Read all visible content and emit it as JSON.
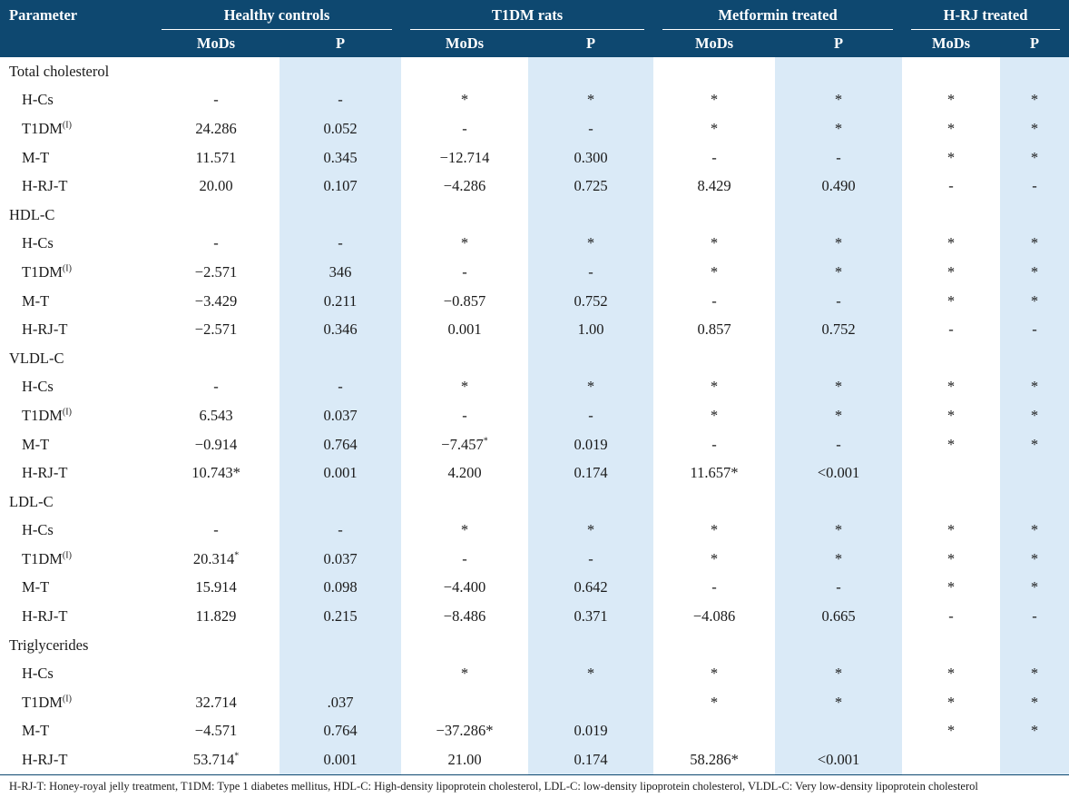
{
  "header": {
    "parameter": "Parameter",
    "groups": [
      "Healthy controls",
      "T1DM rats",
      "Metformin treated",
      "H-RJ treated"
    ],
    "sub_mods": "MoDs",
    "sub_p": "P"
  },
  "rows": [
    {
      "type": "group",
      "name": "Total cholesterol"
    },
    {
      "type": "sub",
      "name": "H-Cs",
      "sup": "",
      "cells": [
        {
          "v": "-"
        },
        {
          "v": "-"
        },
        {
          "v": "*"
        },
        {
          "v": "*"
        },
        {
          "v": "*"
        },
        {
          "v": "*"
        },
        {
          "v": "*"
        },
        {
          "v": "*"
        }
      ]
    },
    {
      "type": "sub",
      "name": "T1DM",
      "sup": "(I)",
      "cells": [
        {
          "v": "24.286"
        },
        {
          "v": "0.052"
        },
        {
          "v": "-"
        },
        {
          "v": "-"
        },
        {
          "v": "*"
        },
        {
          "v": "*"
        },
        {
          "v": "*"
        },
        {
          "v": "*"
        }
      ]
    },
    {
      "type": "sub",
      "name": "M-T",
      "sup": "",
      "cells": [
        {
          "v": "11.571"
        },
        {
          "v": "0.345"
        },
        {
          "v": "−12.714"
        },
        {
          "v": "0.300"
        },
        {
          "v": "-"
        },
        {
          "v": "-"
        },
        {
          "v": "*"
        },
        {
          "v": "*"
        }
      ]
    },
    {
      "type": "sub",
      "name": "H-RJ-T",
      "sup": "",
      "cells": [
        {
          "v": "20.00"
        },
        {
          "v": "0.107"
        },
        {
          "v": "−4.286"
        },
        {
          "v": "0.725"
        },
        {
          "v": "8.429"
        },
        {
          "v": "0.490"
        },
        {
          "v": "-"
        },
        {
          "v": "-"
        }
      ]
    },
    {
      "type": "group",
      "name": "HDL-C"
    },
    {
      "type": "sub",
      "name": "H-Cs",
      "sup": "",
      "cells": [
        {
          "v": "-"
        },
        {
          "v": "-"
        },
        {
          "v": "*"
        },
        {
          "v": "*"
        },
        {
          "v": "*"
        },
        {
          "v": "*"
        },
        {
          "v": "*"
        },
        {
          "v": "*"
        }
      ]
    },
    {
      "type": "sub",
      "name": "T1DM",
      "sup": "(I)",
      "cells": [
        {
          "v": "−2.571"
        },
        {
          "v": "346"
        },
        {
          "v": "-"
        },
        {
          "v": "-"
        },
        {
          "v": "*"
        },
        {
          "v": "*"
        },
        {
          "v": "*"
        },
        {
          "v": "*"
        }
      ]
    },
    {
      "type": "sub",
      "name": "M-T",
      "sup": "",
      "cells": [
        {
          "v": "−3.429"
        },
        {
          "v": "0.211"
        },
        {
          "v": "−0.857"
        },
        {
          "v": "0.752"
        },
        {
          "v": "-"
        },
        {
          "v": "-"
        },
        {
          "v": "*"
        },
        {
          "v": "*"
        }
      ]
    },
    {
      "type": "sub",
      "name": "H-RJ-T",
      "sup": "",
      "cells": [
        {
          "v": "−2.571"
        },
        {
          "v": "0.346"
        },
        {
          "v": "0.001"
        },
        {
          "v": "1.00"
        },
        {
          "v": "0.857"
        },
        {
          "v": "0.752"
        },
        {
          "v": "-"
        },
        {
          "v": "-"
        }
      ]
    },
    {
      "type": "group",
      "name": "VLDL-C"
    },
    {
      "type": "sub",
      "name": "H-Cs",
      "sup": "",
      "cells": [
        {
          "v": "-"
        },
        {
          "v": "-"
        },
        {
          "v": "*"
        },
        {
          "v": "*"
        },
        {
          "v": "*"
        },
        {
          "v": "*"
        },
        {
          "v": "*"
        },
        {
          "v": "*"
        }
      ]
    },
    {
      "type": "sub",
      "name": "T1DM",
      "sup": "(I)",
      "cells": [
        {
          "v": "6.543"
        },
        {
          "v": "0.037"
        },
        {
          "v": "-"
        },
        {
          "v": "-"
        },
        {
          "v": "*"
        },
        {
          "v": "*"
        },
        {
          "v": "*"
        },
        {
          "v": "*"
        }
      ]
    },
    {
      "type": "sub",
      "name": "M-T",
      "sup": "",
      "cells": [
        {
          "v": "−0.914"
        },
        {
          "v": "0.764"
        },
        {
          "v": "−7.457",
          "sup": "*"
        },
        {
          "v": "0.019"
        },
        {
          "v": "-"
        },
        {
          "v": "-"
        },
        {
          "v": "*"
        },
        {
          "v": "*"
        }
      ]
    },
    {
      "type": "sub",
      "name": "H-RJ-T",
      "sup": "",
      "cells": [
        {
          "v": "10.743*"
        },
        {
          "v": "0.001"
        },
        {
          "v": "4.200"
        },
        {
          "v": "0.174"
        },
        {
          "v": "11.657*"
        },
        {
          "v": "<0.001"
        },
        {
          "v": ""
        },
        {
          "v": ""
        }
      ]
    },
    {
      "type": "group",
      "name": "LDL-C"
    },
    {
      "type": "sub",
      "name": "H-Cs",
      "sup": "",
      "cells": [
        {
          "v": "-"
        },
        {
          "v": "-"
        },
        {
          "v": "*"
        },
        {
          "v": "*"
        },
        {
          "v": "*"
        },
        {
          "v": "*"
        },
        {
          "v": "*"
        },
        {
          "v": "*"
        }
      ]
    },
    {
      "type": "sub",
      "name": "T1DM",
      "sup": "(I)",
      "cells": [
        {
          "v": "20.314",
          "sup": "*"
        },
        {
          "v": "0.037"
        },
        {
          "v": "-"
        },
        {
          "v": "-"
        },
        {
          "v": "*"
        },
        {
          "v": "*"
        },
        {
          "v": "*"
        },
        {
          "v": "*"
        }
      ]
    },
    {
      "type": "sub",
      "name": "M-T",
      "sup": "",
      "cells": [
        {
          "v": "15.914"
        },
        {
          "v": "0.098"
        },
        {
          "v": "−4.400"
        },
        {
          "v": "0.642"
        },
        {
          "v": "-"
        },
        {
          "v": "-"
        },
        {
          "v": "*"
        },
        {
          "v": "*"
        }
      ]
    },
    {
      "type": "sub",
      "name": "H-RJ-T",
      "sup": "",
      "cells": [
        {
          "v": "11.829"
        },
        {
          "v": "0.215"
        },
        {
          "v": "−8.486"
        },
        {
          "v": "0.371"
        },
        {
          "v": "−4.086"
        },
        {
          "v": "0.665"
        },
        {
          "v": "-"
        },
        {
          "v": "-"
        }
      ]
    },
    {
      "type": "group",
      "name": "Triglycerides"
    },
    {
      "type": "sub",
      "name": "H-Cs",
      "sup": "",
      "cells": [
        {
          "v": ""
        },
        {
          "v": ""
        },
        {
          "v": "*"
        },
        {
          "v": "*"
        },
        {
          "v": "*"
        },
        {
          "v": "*"
        },
        {
          "v": "*"
        },
        {
          "v": "*"
        }
      ]
    },
    {
      "type": "sub",
      "name": "T1DM",
      "sup": "(I)",
      "cells": [
        {
          "v": "32.714"
        },
        {
          "v": ".037"
        },
        {
          "v": ""
        },
        {
          "v": ""
        },
        {
          "v": "*"
        },
        {
          "v": "*"
        },
        {
          "v": "*"
        },
        {
          "v": "*"
        }
      ]
    },
    {
      "type": "sub",
      "name": "M-T",
      "sup": "",
      "cells": [
        {
          "v": "−4.571"
        },
        {
          "v": "0.764"
        },
        {
          "v": "−37.286*"
        },
        {
          "v": "0.019"
        },
        {
          "v": ""
        },
        {
          "v": ""
        },
        {
          "v": "*"
        },
        {
          "v": "*"
        }
      ]
    },
    {
      "type": "sub",
      "name": "H-RJ-T",
      "sup": "",
      "cells": [
        {
          "v": "53.714",
          "sup": "*"
        },
        {
          "v": "0.001"
        },
        {
          "v": "21.00"
        },
        {
          "v": "0.174"
        },
        {
          "v": "58.286*"
        },
        {
          "v": "<0.001"
        },
        {
          "v": ""
        },
        {
          "v": ""
        }
      ]
    }
  ],
  "footnote": "H-RJ-T: Honey-royal jelly treatment, T1DM: Type 1 diabetes mellitus, HDL-C: High-density lipoprotein cholesterol, LDL-C: low-density lipoprotein cholesterol, VLDL-C: Very low-density lipoprotein cholesterol",
  "colors": {
    "header_bg": "#0e4870",
    "shade": "#daeaf7"
  }
}
